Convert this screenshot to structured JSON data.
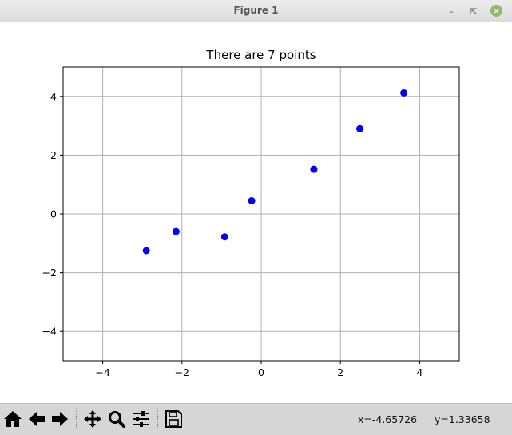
{
  "window": {
    "title": "Figure 1"
  },
  "chart_data": {
    "type": "scatter",
    "title": "There are 7 points",
    "xlabel": "",
    "ylabel": "",
    "xlim": [
      -5,
      5
    ],
    "ylim": [
      -5,
      5
    ],
    "xticks": [
      -4,
      -2,
      0,
      2,
      4
    ],
    "yticks": [
      -4,
      -2,
      0,
      2,
      4
    ],
    "x_tick_labels": [
      "−4",
      "−2",
      "0",
      "2",
      "4"
    ],
    "y_tick_labels": [
      "−4",
      "−2",
      "0",
      "2",
      "4"
    ],
    "grid": true,
    "marker_color": "#0000ff",
    "points": [
      {
        "x": -2.9,
        "y": -1.25
      },
      {
        "x": -2.15,
        "y": -0.6
      },
      {
        "x": -0.92,
        "y": -0.78
      },
      {
        "x": -0.24,
        "y": 0.45
      },
      {
        "x": 1.33,
        "y": 1.52
      },
      {
        "x": 2.49,
        "y": 2.9
      },
      {
        "x": 3.6,
        "y": 4.12
      }
    ]
  },
  "toolbar": {
    "icons": [
      "home-icon",
      "back-arrow-icon",
      "forward-arrow-icon",
      "pan-move-icon",
      "zoom-magnifier-icon",
      "subplots-sliders-icon",
      "save-floppy-icon"
    ],
    "x_readout": "x=-4.65726",
    "y_readout": "y=1.33658"
  }
}
